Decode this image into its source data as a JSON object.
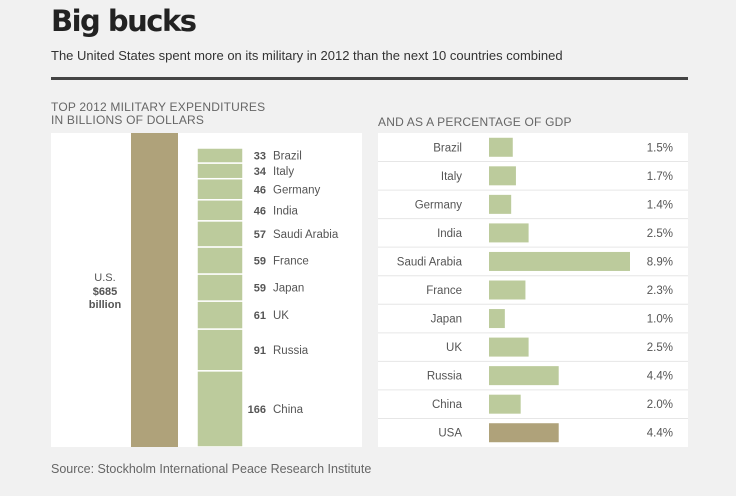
{
  "title": "Big bucks",
  "subtitle": "The United States spent more on its military in 2012 than the next 10 countries combined",
  "left_panel": {
    "heading_line1": "TOP 2012 MILITARY EXPENDITURES",
    "heading_line2": "IN BILLIONS OF DOLLARS",
    "us_label_line1": "U.S.",
    "us_label_line2": "$685",
    "us_label_line3": "billion"
  },
  "right_panel": {
    "heading": "AND AS A PERCENTAGE OF GDP"
  },
  "source": "Source: Stockholm International Peace Research Institute",
  "colors": {
    "us_bar": "#afa27a",
    "other_bars": "#bccb9c",
    "panel_bg": "#ffffff",
    "page_bg": "#f1f1f1"
  },
  "chart_data": [
    {
      "type": "bar",
      "subtype": "stacked-column-comparison",
      "title": "TOP 2012 MILITARY EXPENDITURES IN BILLIONS OF DOLLARS",
      "unit": "billions of dollars",
      "us_total": {
        "name": "U.S.",
        "value": 685,
        "label": "$685 billion"
      },
      "stack": [
        {
          "country": "Brazil",
          "value": 33
        },
        {
          "country": "Italy",
          "value": 34
        },
        {
          "country": "Germany",
          "value": 46
        },
        {
          "country": "India",
          "value": 46
        },
        {
          "country": "Saudi Arabia",
          "value": 57
        },
        {
          "country": "France",
          "value": 59
        },
        {
          "country": "Japan",
          "value": 59
        },
        {
          "country": "UK",
          "value": 61
        },
        {
          "country": "Russia",
          "value": 91
        },
        {
          "country": "China",
          "value": 166
        }
      ]
    },
    {
      "type": "bar",
      "subtype": "horizontal",
      "title": "AND AS A PERCENTAGE OF GDP",
      "unit": "% of GDP",
      "xlim": [
        0,
        8.9
      ],
      "categories": [
        "Brazil",
        "Italy",
        "Germany",
        "India",
        "Saudi Arabia",
        "France",
        "Japan",
        "UK",
        "Russia",
        "China",
        "USA"
      ],
      "values": [
        1.5,
        1.7,
        1.4,
        2.5,
        8.9,
        2.3,
        1.0,
        2.5,
        4.4,
        2.0,
        4.4
      ],
      "labels": [
        "1.5%",
        "1.7%",
        "1.4%",
        "2.5%",
        "8.9%",
        "2.3%",
        "1.0%",
        "2.5%",
        "4.4%",
        "2.0%",
        "4.4%"
      ],
      "highlight": "USA"
    }
  ]
}
